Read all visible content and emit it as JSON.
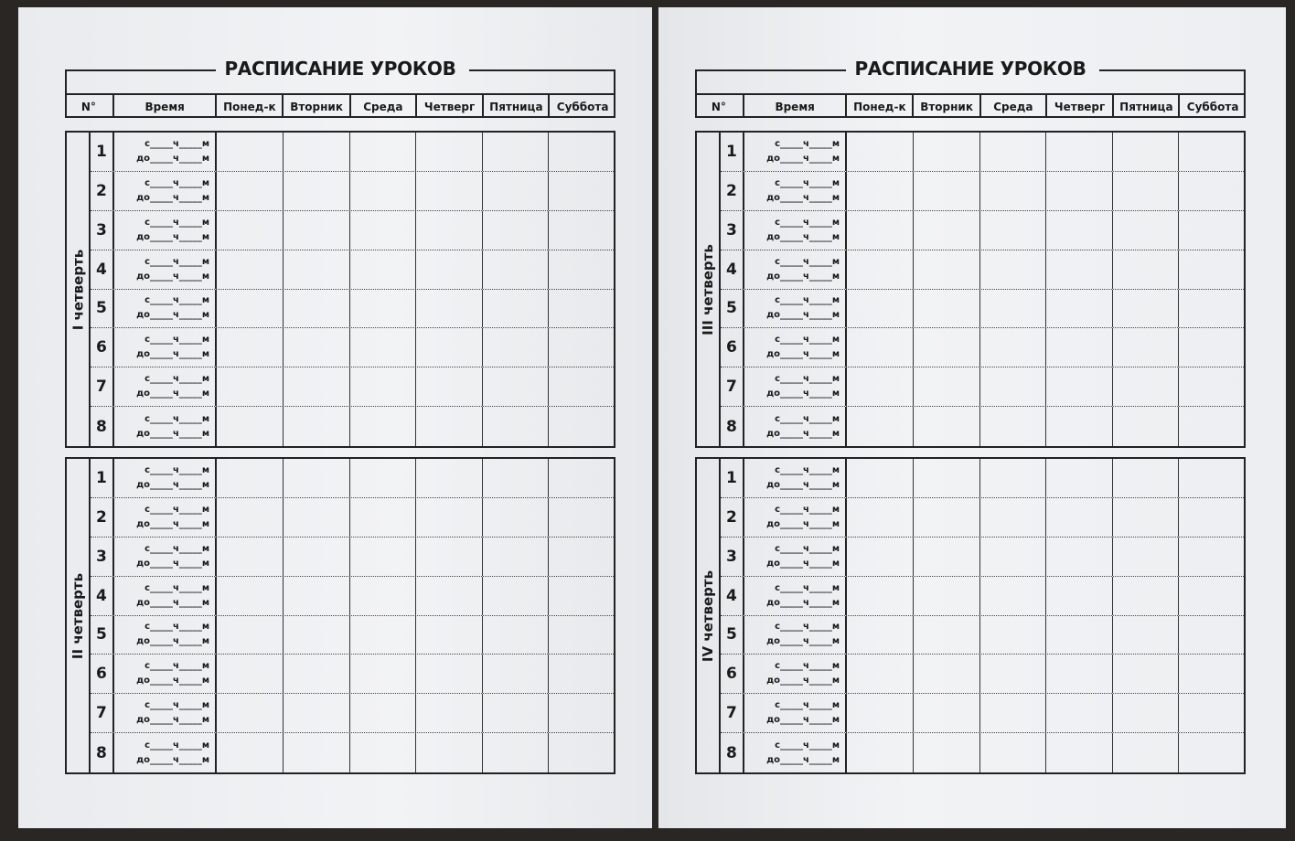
{
  "pages": [
    {
      "title": "РАСПИСАНИЕ УРОКОВ",
      "quarters": [
        "I четверть",
        "II четверть"
      ]
    },
    {
      "title": "РАСПИСАНИЕ УРОКОВ",
      "quarters": [
        "III четверть",
        "IV четверть"
      ]
    }
  ],
  "headers": [
    "N°",
    "Время",
    "Понед-к",
    "Вторник",
    "Среда",
    "Четверг",
    "Пятница",
    "Суббота"
  ],
  "lesson_numbers": [
    "1",
    "2",
    "3",
    "4",
    "5",
    "6",
    "7",
    "8"
  ],
  "time_from": "с_____ч_____м",
  "time_to": "до_____ч_____м"
}
